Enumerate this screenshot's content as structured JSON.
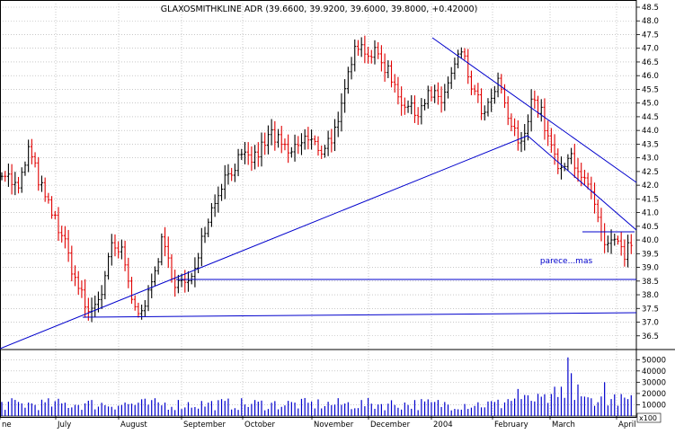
{
  "chart_data": {
    "type": "ohlc",
    "title": "GLAXOSMITHKLINE ADR (39.6600, 39.9200, 39.6000, 39.8000, +0.42000)",
    "annotation": "parece...mas",
    "price_axis": {
      "min": 36.0,
      "max": 48.5,
      "ticks": [
        "48.5",
        "48.0",
        "47.5",
        "47.0",
        "46.5",
        "46.0",
        "45.5",
        "45.0",
        "44.5",
        "44.0",
        "43.5",
        "43.0",
        "42.5",
        "42.0",
        "41.5",
        "41.0",
        "40.5",
        "40.0",
        "39.5",
        "39.0",
        "38.5",
        "38.0",
        "37.5",
        "37.0",
        "36.5"
      ]
    },
    "volume_axis": {
      "ticks": [
        "50000",
        "40000",
        "30000",
        "20000",
        "10000"
      ],
      "unit_label": "x100",
      "max": 55000
    },
    "x_labels": [
      "ne",
      "July",
      "August",
      "September",
      "October",
      "November",
      "December",
      "2004",
      "February",
      "March",
      "April"
    ],
    "colors": {
      "up": "#000000",
      "down": "#e00000",
      "trendline": "#0000cc",
      "grid": "#a8a8a8",
      "volume": "#0000cc",
      "annotation": "#0000cc"
    },
    "trendlines": [
      {
        "name": "long-uptrend",
        "from": [
          "ne",
          36.0
        ],
        "to": [
          "February",
          43.8
        ]
      },
      {
        "name": "top-downtrend",
        "from": [
          "2004",
          47.3
        ],
        "to": [
          "April",
          42.1
        ]
      },
      {
        "name": "march-downtrend",
        "from": [
          "February",
          43.8
        ],
        "to": [
          "April",
          39.3
        ]
      },
      {
        "name": "support-38.4",
        "from": [
          "September",
          38.4
        ],
        "to": [
          "April",
          38.4
        ]
      },
      {
        "name": "support-37.1",
        "from": [
          "July",
          37.0
        ],
        "to": [
          "April",
          37.2
        ]
      },
      {
        "name": "short-support",
        "from": [
          "March",
          39.15
        ],
        "to": [
          "April",
          39.2
        ]
      }
    ],
    "anchors": [
      {
        "t": 0,
        "p": 42.6
      },
      {
        "t": 10,
        "p": 41.8
      },
      {
        "t": 16,
        "p": 43.3
      },
      {
        "t": 26,
        "p": 41.5
      },
      {
        "t": 36,
        "p": 40.2
      },
      {
        "t": 44,
        "p": 38.6
      },
      {
        "t": 52,
        "p": 37.3
      },
      {
        "t": 60,
        "p": 38.1
      },
      {
        "t": 66,
        "p": 39.7
      },
      {
        "t": 72,
        "p": 39.5
      },
      {
        "t": 80,
        "p": 37.4
      },
      {
        "t": 88,
        "p": 37.9
      },
      {
        "t": 96,
        "p": 39.9
      },
      {
        "t": 104,
        "p": 38.5
      },
      {
        "t": 112,
        "p": 38.3
      },
      {
        "t": 122,
        "p": 40.5
      },
      {
        "t": 132,
        "p": 42.1
      },
      {
        "t": 142,
        "p": 42.9
      },
      {
        "t": 152,
        "p": 43.0
      },
      {
        "t": 162,
        "p": 43.9
      },
      {
        "t": 172,
        "p": 43.1
      },
      {
        "t": 182,
        "p": 43.7
      },
      {
        "t": 192,
        "p": 43.3
      },
      {
        "t": 202,
        "p": 44.1
      },
      {
        "t": 207,
        "p": 45.7
      },
      {
        "t": 212,
        "p": 47.3
      },
      {
        "t": 219,
        "p": 46.9
      },
      {
        "t": 226,
        "p": 46.7
      },
      {
        "t": 233,
        "p": 46.1
      },
      {
        "t": 240,
        "p": 45.1
      },
      {
        "t": 248,
        "p": 44.6
      },
      {
        "t": 256,
        "p": 45.3
      },
      {
        "t": 264,
        "p": 45.1
      },
      {
        "t": 272,
        "p": 46.3
      },
      {
        "t": 276,
        "p": 46.9
      },
      {
        "t": 282,
        "p": 45.6
      },
      {
        "t": 290,
        "p": 44.5
      },
      {
        "t": 298,
        "p": 45.7
      },
      {
        "t": 306,
        "p": 44.1
      },
      {
        "t": 312,
        "p": 43.4
      },
      {
        "t": 318,
        "p": 45.2
      },
      {
        "t": 324,
        "p": 44.6
      },
      {
        "t": 330,
        "p": 43.3
      },
      {
        "t": 336,
        "p": 42.4
      },
      {
        "t": 342,
        "p": 43.1
      },
      {
        "t": 350,
        "p": 42.2
      },
      {
        "t": 356,
        "p": 41.2
      },
      {
        "t": 362,
        "p": 39.6
      },
      {
        "t": 368,
        "p": 39.9
      },
      {
        "t": 374,
        "p": 39.5
      },
      {
        "t": 378,
        "p": 39.8
      }
    ],
    "volume_spikes": [
      {
        "t": 340,
        "v": 52000
      },
      {
        "t": 341,
        "v": 44000
      },
      {
        "t": 343,
        "v": 38000
      },
      {
        "t": 337,
        "v": 26000
      },
      {
        "t": 346,
        "v": 28000
      },
      {
        "t": 310,
        "v": 24000
      },
      {
        "t": 332,
        "v": 26000
      },
      {
        "t": 362,
        "v": 30000
      }
    ]
  }
}
